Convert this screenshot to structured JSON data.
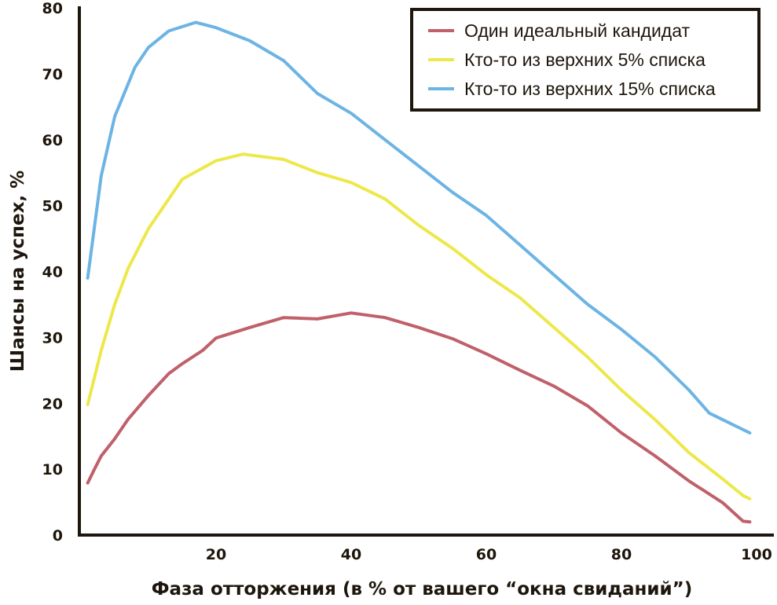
{
  "chart_data": {
    "type": "line",
    "title": "",
    "xlabel": "Фаза отторжения (в % от вашего “окна свиданий”)",
    "ylabel": "Шансы на успех, %",
    "xlim": [
      0,
      100
    ],
    "ylim": [
      0,
      80
    ],
    "xticks": [
      "20",
      "40",
      "60",
      "80",
      "100"
    ],
    "yticks": [
      "0",
      "10",
      "20",
      "30",
      "40",
      "50",
      "60",
      "70",
      "80"
    ],
    "grid": false,
    "legend_position": "top-right",
    "series": [
      {
        "name": "Один идеальный кандидат",
        "color": "#c0606a",
        "x": [
          1,
          2,
          3,
          5,
          7,
          10,
          13,
          15,
          18,
          20,
          25,
          30,
          35,
          40,
          45,
          50,
          55,
          60,
          65,
          70,
          75,
          80,
          85,
          90,
          95,
          98,
          99
        ],
        "y": [
          7.9,
          10,
          12,
          14.6,
          17.6,
          21.2,
          24.5,
          26,
          28,
          29.9,
          31.5,
          33,
          32.8,
          33.7,
          33,
          31.5,
          29.8,
          27.5,
          25,
          22.6,
          19.6,
          15.5,
          12,
          8.2,
          4.9,
          2.1,
          2
        ]
      },
      {
        "name": "Кто-то из верхних 5% списка",
        "color": "#ede84a",
        "x": [
          1,
          3,
          5,
          7,
          10,
          13,
          15,
          20,
          24,
          30,
          35,
          40,
          45,
          50,
          55,
          60,
          65,
          70,
          75,
          80,
          85,
          90,
          95,
          98,
          99
        ],
        "y": [
          19.8,
          28,
          35,
          40.5,
          46.5,
          51,
          54,
          56.8,
          57.8,
          57,
          55,
          53.5,
          51,
          47,
          43.5,
          39.5,
          36,
          31.5,
          27,
          22,
          17.5,
          12.5,
          8.5,
          6,
          5.5
        ]
      },
      {
        "name": "Кто-то из верхних 15% списка",
        "color": "#6cb4e4",
        "x": [
          1,
          3,
          5,
          8,
          10,
          13,
          17,
          20,
          25,
          30,
          35,
          40,
          45,
          50,
          55,
          60,
          65,
          70,
          75,
          80,
          85,
          90,
          93,
          95,
          99
        ],
        "y": [
          39,
          54.5,
          63.5,
          71,
          74,
          76.5,
          77.8,
          77,
          75,
          72,
          67,
          64,
          60,
          56,
          52,
          48.5,
          44,
          39.5,
          35,
          31.2,
          27,
          22,
          18.5,
          17.5,
          15.5
        ]
      }
    ]
  }
}
